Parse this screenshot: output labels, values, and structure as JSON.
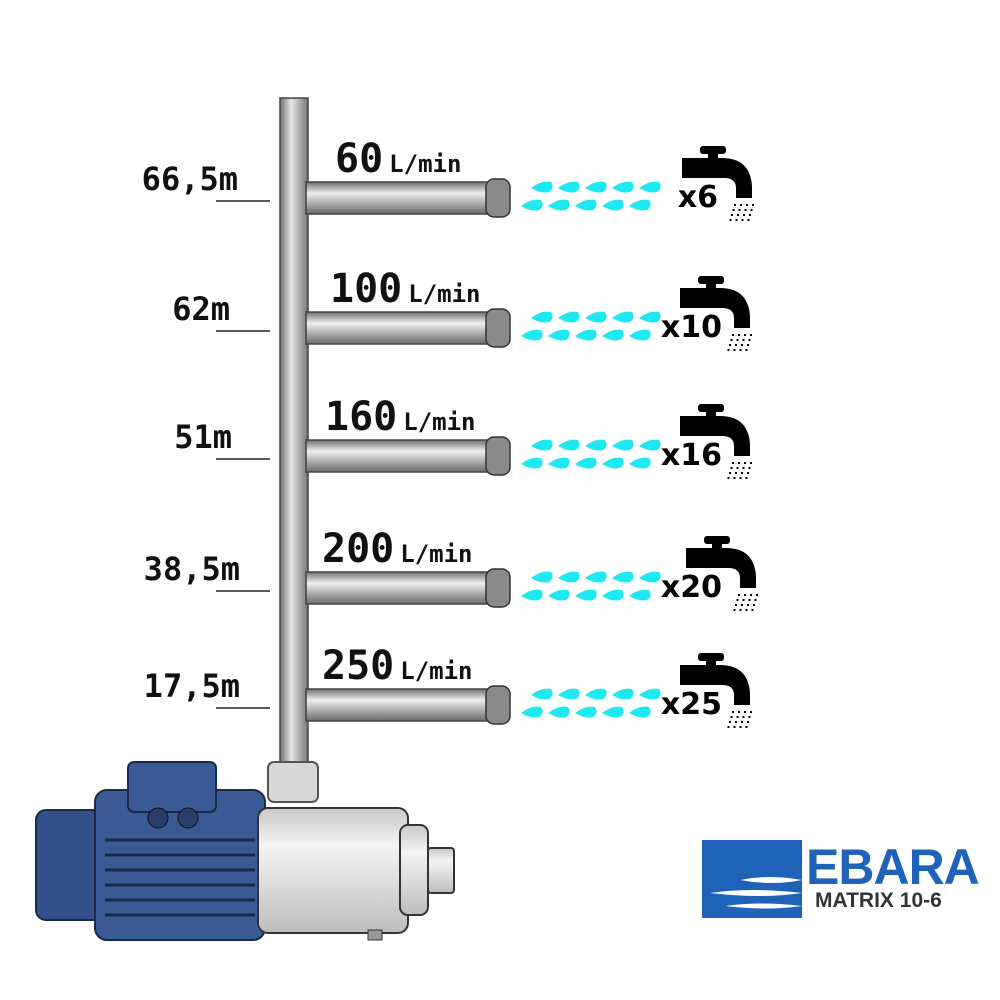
{
  "levels": [
    {
      "height": "66,5m",
      "flow": "60",
      "unit": "L/min",
      "multiplier": "x6"
    },
    {
      "height": "62m",
      "flow": "100",
      "unit": "L/min",
      "multiplier": "x10"
    },
    {
      "height": "51m",
      "flow": "160",
      "unit": "L/min",
      "multiplier": "x16"
    },
    {
      "height": "38,5m",
      "flow": "200",
      "unit": "L/min",
      "multiplier": "x20"
    },
    {
      "height": "17,5m",
      "flow": "250",
      "unit": "L/min",
      "multiplier": "x25"
    }
  ],
  "logo": {
    "brand": "EBARA",
    "model": "MATRIX 10-6"
  },
  "colors": {
    "water": "#1ee8f0",
    "brand_blue": "#1f63b8",
    "motor_blue": "#33508a",
    "pipe": "#9a9a9a"
  }
}
